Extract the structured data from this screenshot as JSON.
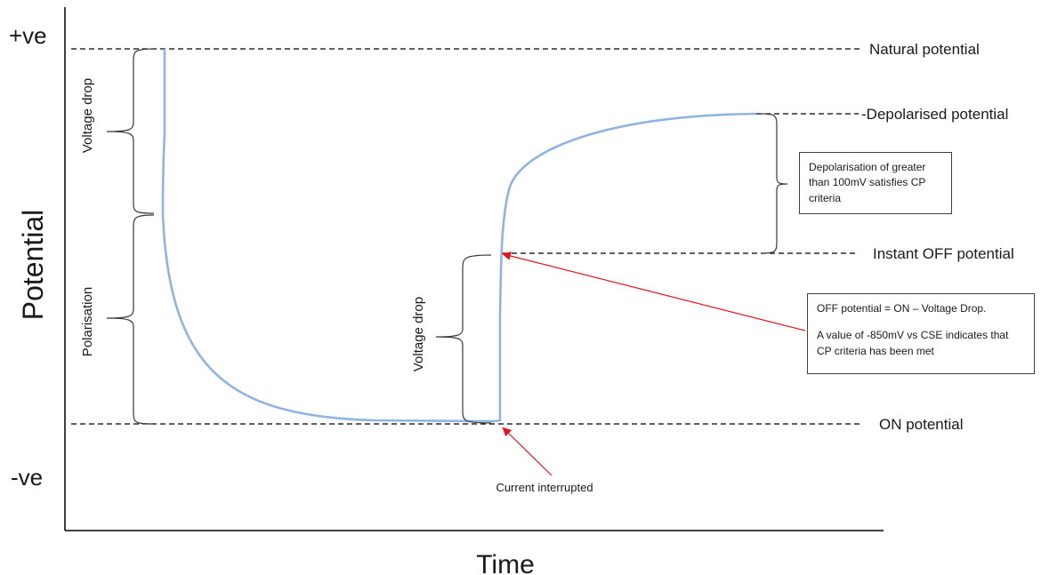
{
  "axes": {
    "y_label": "Potential",
    "x_label": "Time",
    "y_top": "+ve",
    "y_bottom": "-ve"
  },
  "levels": {
    "natural": "Natural potential",
    "depolarised": "-Depolarised potential",
    "instant_off": "Instant OFF potential",
    "on": "ON potential"
  },
  "braces": {
    "voltage_drop_left": "Voltage drop",
    "polarisation": "Polarisation",
    "voltage_drop_mid": "Voltage drop"
  },
  "annotations": {
    "current_interrupted": "Current interrupted",
    "depolarisation_note": "Depolarisation of greater than 100mV satisfies CP criteria",
    "off_note_line1": "OFF potential = ON – Voltage Drop.",
    "off_note_line2": "A value of -850mV vs CSE indicates that CP criteria has been met"
  },
  "colors": {
    "curve": "#8fb4e3",
    "arrow": "#e8141b",
    "axis": "#000000",
    "dashed": "#000000",
    "brace": "#3a3a3a"
  }
}
